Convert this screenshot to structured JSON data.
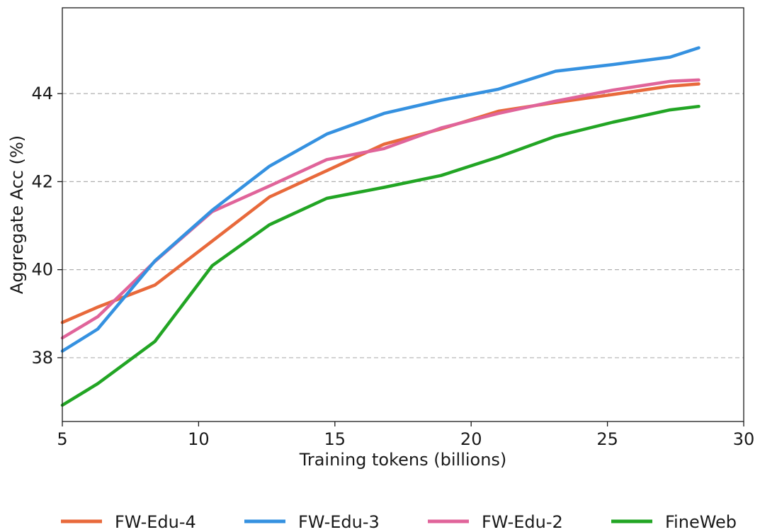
{
  "chart_data": {
    "type": "line",
    "title": "",
    "xlabel": "Training tokens (billions)",
    "ylabel": "Aggregate Acc (%)",
    "xlim": [
      5,
      30
    ],
    "ylim": [
      36.55,
      45.95
    ],
    "xticks": [
      5,
      10,
      15,
      20,
      25,
      30
    ],
    "yticks": [
      38,
      40,
      42,
      44
    ],
    "grid": "y-dashed",
    "legend_position": "bottom",
    "series": [
      {
        "name": "FW-Edu-4",
        "color": "#e8693b",
        "x": [
          5.0,
          6.3,
          8.4,
          10.5,
          12.6,
          14.7,
          16.8,
          18.9,
          21.0,
          23.1,
          25.2,
          27.3,
          28.35
        ],
        "y": [
          38.8,
          39.15,
          39.65,
          40.65,
          41.65,
          42.25,
          42.85,
          43.2,
          43.6,
          43.8,
          43.98,
          44.17,
          44.22
        ]
      },
      {
        "name": "FW-Edu-3",
        "color": "#3591e0",
        "x": [
          5.0,
          6.3,
          8.4,
          10.5,
          12.6,
          14.7,
          16.8,
          18.9,
          21.0,
          23.1,
          25.2,
          27.3,
          28.35
        ],
        "y": [
          38.15,
          38.65,
          40.2,
          41.35,
          42.35,
          43.08,
          43.55,
          43.85,
          44.1,
          44.51,
          44.66,
          44.83,
          45.04
        ]
      },
      {
        "name": "FW-Edu-2",
        "color": "#e0649a",
        "x": [
          5.0,
          6.3,
          8.4,
          10.5,
          12.6,
          14.7,
          16.8,
          18.9,
          21.0,
          23.1,
          25.2,
          27.3,
          28.35
        ],
        "y": [
          38.45,
          38.93,
          40.19,
          41.32,
          41.9,
          42.5,
          42.75,
          43.22,
          43.55,
          43.83,
          44.08,
          44.28,
          44.31
        ]
      },
      {
        "name": "FineWeb",
        "color": "#22a524",
        "x": [
          5.0,
          6.3,
          8.4,
          10.5,
          12.6,
          14.7,
          16.8,
          18.9,
          21.0,
          23.1,
          25.2,
          27.3,
          28.35
        ],
        "y": [
          36.92,
          37.41,
          38.37,
          40.09,
          41.02,
          41.62,
          41.87,
          42.14,
          42.56,
          43.03,
          43.35,
          43.63,
          43.71
        ]
      }
    ]
  }
}
